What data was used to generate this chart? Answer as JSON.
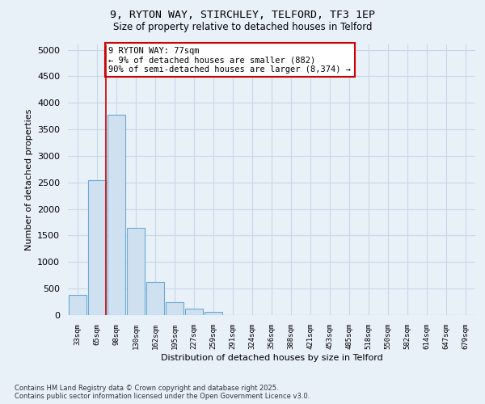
{
  "title_line1": "9, RYTON WAY, STIRCHLEY, TELFORD, TF3 1EP",
  "title_line2": "Size of property relative to detached houses in Telford",
  "xlabel": "Distribution of detached houses by size in Telford",
  "ylabel": "Number of detached properties",
  "categories": [
    "33sqm",
    "65sqm",
    "98sqm",
    "130sqm",
    "162sqm",
    "195sqm",
    "227sqm",
    "259sqm",
    "291sqm",
    "324sqm",
    "356sqm",
    "388sqm",
    "421sqm",
    "453sqm",
    "485sqm",
    "518sqm",
    "550sqm",
    "582sqm",
    "614sqm",
    "647sqm",
    "679sqm"
  ],
  "values": [
    380,
    2550,
    3780,
    1650,
    620,
    250,
    120,
    60,
    0,
    0,
    0,
    0,
    0,
    0,
    0,
    0,
    0,
    0,
    0,
    0,
    0
  ],
  "bar_color": "#cfe0f0",
  "bar_edge_color": "#6aaad4",
  "vline_color": "#cc0000",
  "annotation_text": "9 RYTON WAY: 77sqm\n← 9% of detached houses are smaller (882)\n90% of semi-detached houses are larger (8,374) →",
  "annotation_box_color": "#ffffff",
  "annotation_box_edge": "#cc0000",
  "ylim": [
    0,
    5100
  ],
  "yticks": [
    0,
    500,
    1000,
    1500,
    2000,
    2500,
    3000,
    3500,
    4000,
    4500,
    5000
  ],
  "footer_line1": "Contains HM Land Registry data © Crown copyright and database right 2025.",
  "footer_line2": "Contains public sector information licensed under the Open Government Licence v3.0.",
  "grid_color": "#c8d8e8",
  "background_color": "#e8f0f8",
  "plot_bg_color": "#e8f0f8"
}
